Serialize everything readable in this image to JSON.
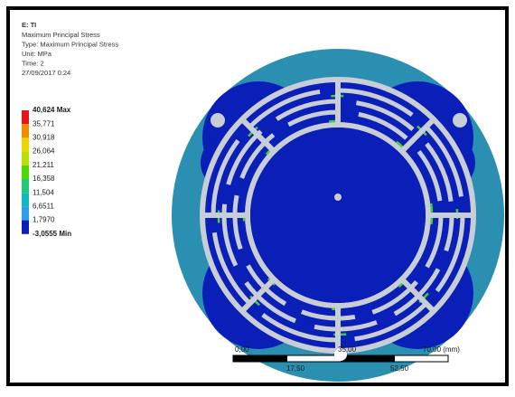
{
  "header": {
    "title": "E: TI",
    "lines": [
      "Maximum Principal Stress",
      "Type: Maximum Principal Stress",
      "Unit: MPa",
      "Time: 2",
      "27/09/2017 0:24"
    ]
  },
  "legend": {
    "labels": [
      "40,624 Max",
      "35,771",
      "30,918",
      "26,064",
      "21,211",
      "16,358",
      "11,504",
      "6,6511",
      "1,7970",
      "-3,0555 Min"
    ]
  },
  "scale_bar": {
    "top_labels": [
      "0,00",
      "35,00",
      "70,00 (mm)"
    ],
    "bottom_labels": [
      "17,50",
      "52,50"
    ]
  }
}
